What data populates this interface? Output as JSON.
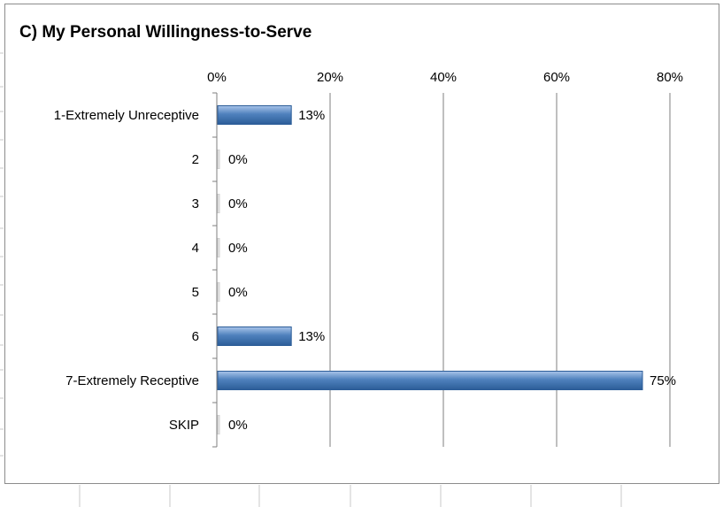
{
  "chart_data": {
    "type": "bar",
    "orientation": "horizontal",
    "title": "C) My Personal Willingness-to-Serve",
    "categories": [
      "1-Extremely Unreceptive",
      "2",
      "3",
      "4",
      "5",
      "6",
      "7-Extremely Receptive",
      "SKIP"
    ],
    "values": [
      13,
      0,
      0,
      0,
      0,
      13,
      75,
      0
    ],
    "data_labels": [
      "13%",
      "0%",
      "0%",
      "0%",
      "0%",
      "13%",
      "75%",
      "0%"
    ],
    "x_ticks": [
      "0%",
      "20%",
      "40%",
      "60%",
      "80%"
    ],
    "xlim": [
      0,
      80
    ],
    "x_axis_position": "top",
    "grid": true,
    "legend": "none",
    "colors": {
      "bar": "#4f81bd",
      "bar_dark": "#2c5d98",
      "bar_light": "#a9c4ea",
      "grid": "#7f7f7f"
    }
  }
}
